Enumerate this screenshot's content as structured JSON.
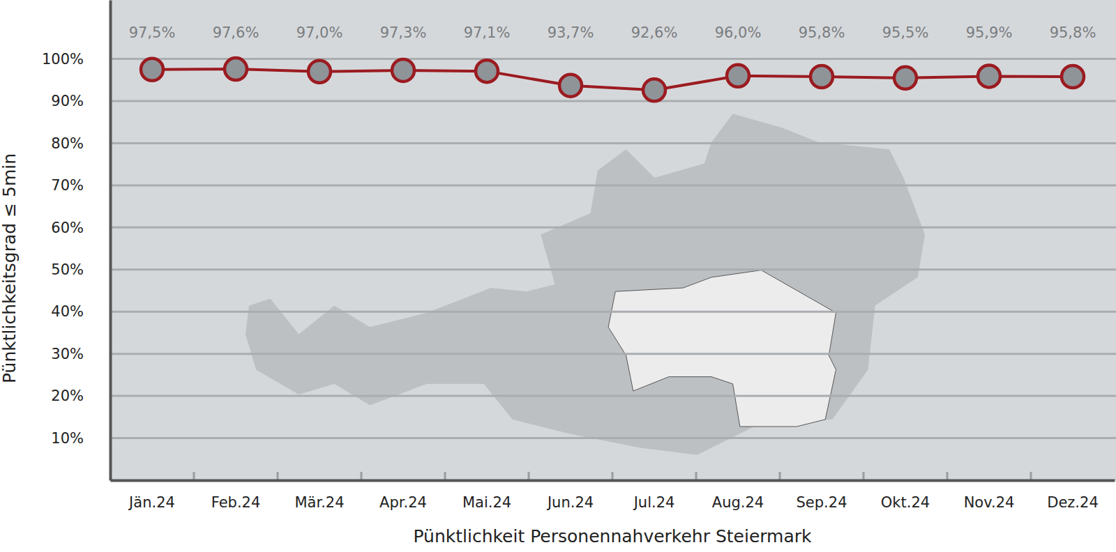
{
  "chart_data": {
    "type": "line",
    "x_label": "Pünktlichkeit Personennahverkehr Steiermark",
    "y_label": "Pünktlichkeitsgrad ≤ 5min",
    "categories": [
      "Jän.24",
      "Feb.24",
      "Mär.24",
      "Apr.24",
      "Mai.24",
      "Jun.24",
      "Jul.24",
      "Aug.24",
      "Sep.24",
      "Okt.24",
      "Nov.24",
      "Dez.24"
    ],
    "values": [
      97.5,
      97.6,
      97.0,
      97.3,
      97.1,
      93.7,
      92.6,
      96.0,
      95.8,
      95.5,
      95.9,
      95.8
    ],
    "value_labels": [
      "97,5%",
      "97,6%",
      "97,0%",
      "97,3%",
      "97,1%",
      "93,7%",
      "92,6%",
      "96,0%",
      "95,8%",
      "95,5%",
      "95,9%",
      "95,8%"
    ],
    "data_labels": true,
    "color": "#9b1b20",
    "marker": "circle",
    "ylim": [
      0,
      114
    ],
    "yticks": [
      {
        "value": 10,
        "label": "10%"
      },
      {
        "value": 20,
        "label": "20%"
      },
      {
        "value": 30,
        "label": "30%"
      },
      {
        "value": 40,
        "label": "40%"
      },
      {
        "value": 50,
        "label": "50%"
      },
      {
        "value": 60,
        "label": "60%"
      },
      {
        "value": 70,
        "label": "70%"
      },
      {
        "value": 80,
        "label": "80%"
      },
      {
        "value": 90,
        "label": "90%"
      },
      {
        "value": 100,
        "label": "100%"
      }
    ],
    "grid": true
  }
}
